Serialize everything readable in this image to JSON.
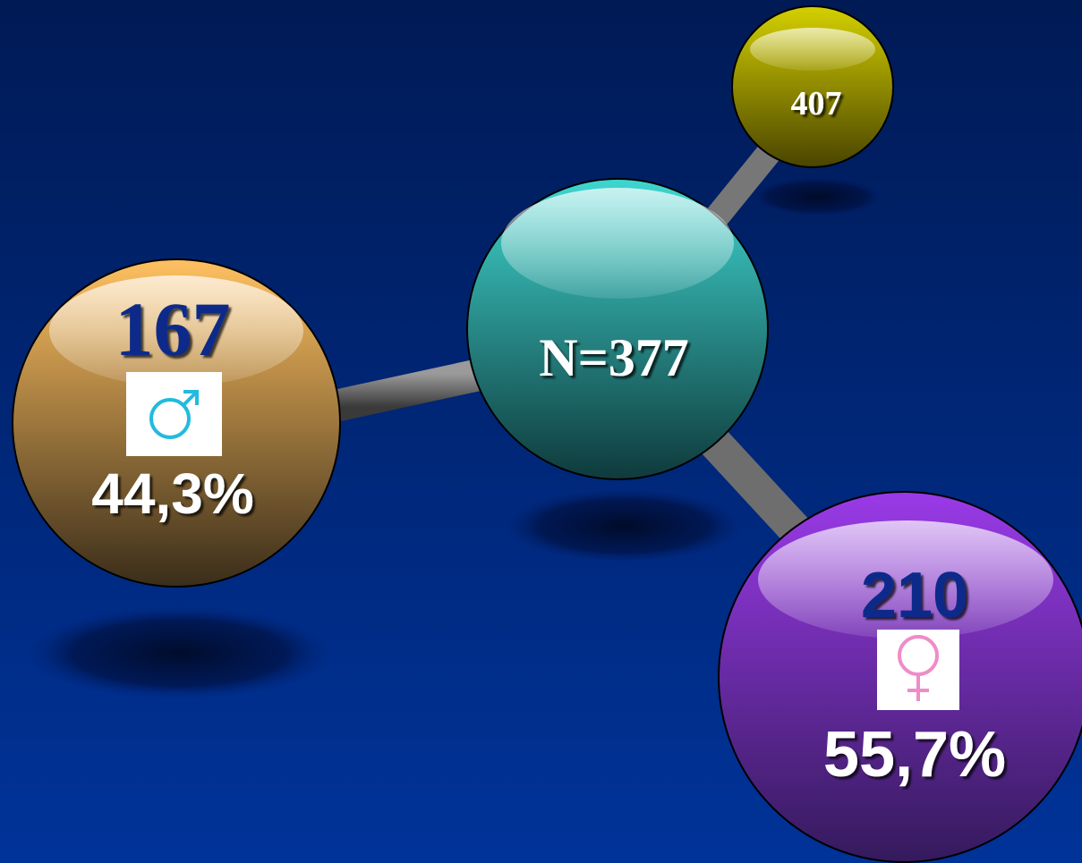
{
  "nodes": [
    {
      "label": "407"
    },
    {
      "label": "N=377"
    },
    {
      "label": "167",
      "percent": "44,3%"
    },
    {
      "label": "210",
      "percent": "55,7%"
    }
  ]
}
